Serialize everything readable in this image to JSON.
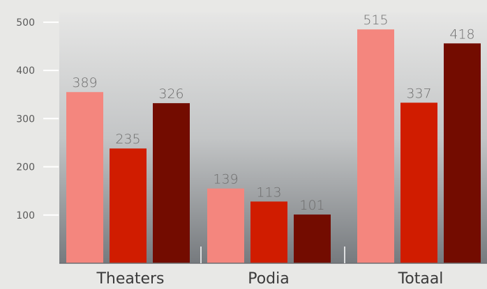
{
  "chart_data": {
    "type": "bar",
    "title": "",
    "xlabel": "",
    "ylabel": "",
    "categories": [
      "Theaters",
      "Podia",
      "Totaal"
    ],
    "series": [
      {
        "values": [
          389,
          139,
          515
        ],
        "color": "#f4867e"
      },
      {
        "values": [
          235,
          113,
          337
        ],
        "color": "#d01c00"
      },
      {
        "values": [
          326,
          101,
          418
        ],
        "color": "#730c00"
      }
    ],
    "bar_heights_as_drawn": [
      [
        355,
        155,
        485
      ],
      [
        238,
        128,
        333
      ],
      [
        332,
        101,
        456
      ]
    ],
    "yticks": [
      100,
      200,
      300,
      400,
      500
    ],
    "ylim": [
      0,
      520
    ],
    "grid": false,
    "legend": "none"
  }
}
